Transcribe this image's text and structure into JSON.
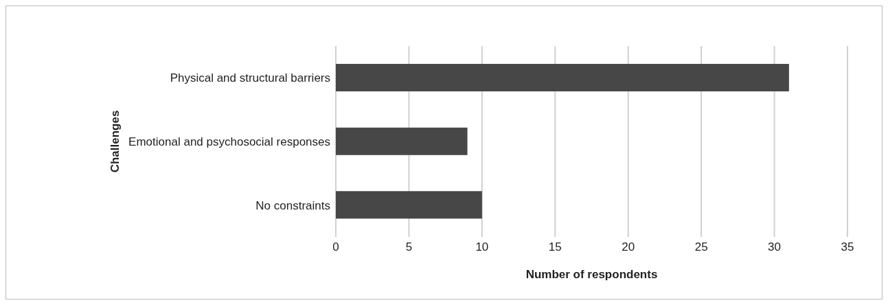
{
  "chart_data": {
    "type": "bar",
    "orientation": "horizontal",
    "xlabel": "Number of respondents",
    "ylabel": "Challenges",
    "categories": [
      "Physical and structural barriers",
      "Emotional and psychosocial responses",
      "No constraints"
    ],
    "values": [
      31,
      9,
      10
    ],
    "color": "#474747",
    "xlim": [
      0,
      35
    ],
    "xticks": [
      0,
      5,
      10,
      15,
      20,
      25,
      30,
      35
    ],
    "grid": "x"
  }
}
